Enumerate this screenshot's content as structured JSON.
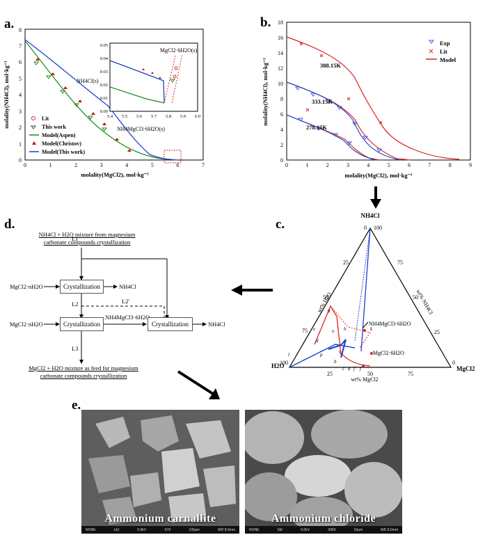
{
  "panels": {
    "a": {
      "label": "a.",
      "ylabel": "molality(NH4Cl), mol·kg⁻¹",
      "xlabel": "molality(MgCl2), mol·kg⁻¹",
      "xticks": [
        "0",
        "1",
        "2",
        "3",
        "4",
        "5",
        "6",
        "7"
      ],
      "yticks": [
        "0",
        "1",
        "2",
        "3",
        "4",
        "5",
        "6",
        "7",
        "8"
      ],
      "annot_nh4cl": "NH4Cl(s)",
      "annot_carnallite": "NH4MgCl3·6H2O(s)",
      "legend": [
        "Lit",
        "This work",
        "Model(Aspen)",
        "Model(Christov)",
        "Model(This work)"
      ],
      "inset": {
        "xticks": [
          "5.4",
          "5.5",
          "5.6",
          "5.7",
          "5.8",
          "5.9",
          "6.0"
        ],
        "yticks": [
          "0.00",
          "0.01",
          "0.02",
          "0.03",
          "0.04",
          "0.05"
        ],
        "annot": "MgCl2·6H2O(s)"
      }
    },
    "b": {
      "label": "b.",
      "ylabel": "molality(NH4Cl), mol·kg⁻¹",
      "xlabel": "molality(MgCl2), mol·kg⁻¹",
      "xticks": [
        "0",
        "1",
        "2",
        "3",
        "4",
        "5",
        "6",
        "7",
        "8",
        "9"
      ],
      "yticks": [
        "0",
        "2",
        "4",
        "6",
        "8",
        "10",
        "12",
        "14",
        "16",
        "18"
      ],
      "temps": [
        "388.15K",
        "333.15K",
        "278.15K"
      ],
      "legend": [
        "Exp",
        "Lit",
        "Model"
      ]
    },
    "c": {
      "label": "c.",
      "apex_top": "NH4Cl",
      "apex_left": "H2O",
      "apex_right": "MgCl2",
      "axis_left": "wt% H2O",
      "axis_right": "wt% NH4Cl",
      "axis_bottom": "wt% MgCl2",
      "ticks": [
        "0",
        "25",
        "50",
        "75",
        "100"
      ],
      "annot_carnallite": "NH4MgCl3·6H2O",
      "annot_bischofite": "MgCl2·6H2O",
      "points": [
        "a",
        "b",
        "c",
        "d",
        "e",
        "f",
        "g",
        "h",
        "i",
        "j",
        "k",
        "l",
        "o",
        "p"
      ]
    },
    "d": {
      "label": "d.",
      "top_text": "NH4Cl + H2O mixture from magnesium carbonate compounds crystallization",
      "feed1": "MgCl2·nH2O",
      "feed2": "MgCl2·nH2O",
      "cryst1": "Crystallization",
      "cryst2": "Crystallization",
      "cryst3": "Crystallization",
      "out1": "NH4Cl",
      "out2": "NH4Cl",
      "mid_label": "NH4MgCl3·6H2O",
      "stream_l1": "L1",
      "stream_l2": "L2",
      "stream_l2p": "L2'",
      "stream_l3": "L3",
      "bottom_text": "MgCl2 + H2O mixture as feed for magnesium carbonate compounds crystallization"
    },
    "e": {
      "label": "e.",
      "left_caption": "Ammonium carnallite",
      "right_caption": "Ammonium chloride",
      "left_bar": [
        "NONE",
        "LEI",
        "5.0kV",
        "X70",
        "100μm",
        "WD 8.0mm"
      ],
      "right_bar": [
        "NONE",
        "SEI",
        "5.0kV",
        "X950",
        "10μm",
        "WD 8.0mm"
      ]
    }
  },
  "colors": {
    "red": "#e02020",
    "blue": "#1a3fd0",
    "green": "#1a8a1a",
    "gray": "#777777"
  }
}
